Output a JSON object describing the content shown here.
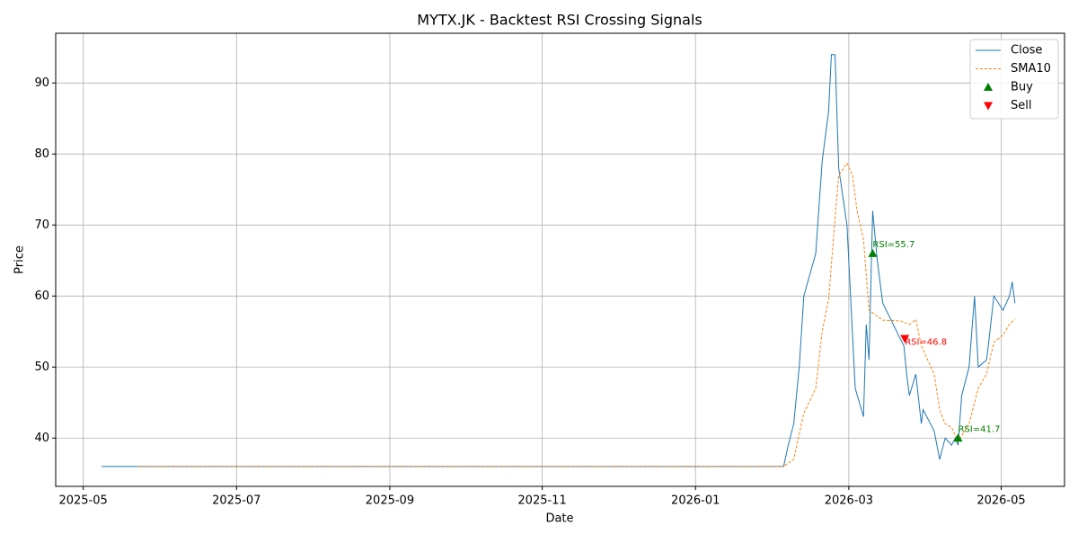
{
  "chart_data": {
    "type": "line",
    "title": "MYTX.JK - Backtest RSI Crossing Signals",
    "x_label": "Date",
    "y_label": "Price",
    "xlim": [
      2025.303,
      2026.402
    ],
    "ylim": [
      33.2,
      97.0
    ],
    "xticks": [
      {
        "value": 2025.333,
        "label": "2025-05"
      },
      {
        "value": 2025.5,
        "label": "2025-07"
      },
      {
        "value": 2025.667,
        "label": "2025-09"
      },
      {
        "value": 2025.833,
        "label": "2025-11"
      },
      {
        "value": 2026.0,
        "label": "2026-01"
      },
      {
        "value": 2026.167,
        "label": "2026-03"
      },
      {
        "value": 2026.333,
        "label": "2026-05"
      }
    ],
    "yticks": [
      40,
      50,
      60,
      70,
      80,
      90
    ],
    "grid": true,
    "legend": "upper right",
    "series": [
      {
        "name": "Close",
        "color": "#1f77b4",
        "style": "solid",
        "x": [
          2025.353,
          2026.096,
          2026.101,
          2026.107,
          2026.113,
          2026.118,
          2026.131,
          2026.138,
          2026.145,
          2026.148,
          2026.152,
          2026.156,
          2026.165,
          2026.174,
          2026.183,
          2026.186,
          2026.189,
          2026.193,
          2026.198,
          2026.204,
          2026.223,
          2026.227,
          2026.23,
          2026.233,
          2026.24,
          2026.246,
          2026.248,
          2026.26,
          2026.266,
          2026.272,
          2026.279,
          2026.283,
          2026.286,
          2026.29,
          2026.298,
          2026.304,
          2026.308,
          2026.317,
          2026.319,
          2026.325,
          2026.335,
          2026.342,
          2026.345,
          2026.348
        ],
        "values": [
          36,
          36,
          39,
          42,
          50,
          60,
          66,
          79,
          86,
          94,
          94,
          78,
          70,
          47,
          43,
          56,
          51,
          72,
          65,
          59,
          54,
          53,
          49,
          46,
          49,
          42,
          44,
          41,
          37,
          40,
          39,
          40,
          39,
          46,
          50,
          60,
          50,
          51,
          53,
          60,
          58,
          60,
          62,
          59
        ]
      },
      {
        "name": "SMA10",
        "color": "#ff7f0e",
        "style": "dashed",
        "x": [
          2025.393,
          2026.096,
          2026.107,
          2026.118,
          2026.131,
          2026.138,
          2026.145,
          2026.152,
          2026.156,
          2026.165,
          2026.171,
          2026.176,
          2026.183,
          2026.189,
          2026.204,
          2026.223,
          2026.233,
          2026.24,
          2026.246,
          2026.26,
          2026.266,
          2026.272,
          2026.279,
          2026.286,
          2026.298,
          2026.308,
          2026.317,
          2026.325,
          2026.335,
          2026.342,
          2026.348
        ],
        "values": [
          36,
          36,
          37,
          43.5,
          47,
          55,
          59.5,
          71,
          77,
          78.7,
          77,
          72,
          68,
          58,
          56.6,
          56.5,
          56,
          56.7,
          53,
          49,
          44,
          42,
          41.5,
          39.5,
          42,
          47,
          49,
          53.5,
          54.5,
          56,
          56.8
        ]
      },
      {
        "name": "Buy",
        "color": "#008000",
        "marker": "up",
        "x": [
          2026.193,
          2026.286
        ],
        "values": [
          66,
          40
        ],
        "labels": [
          "RSI=55.7",
          "RSI=41.7"
        ]
      },
      {
        "name": "Sell",
        "color": "#ff0000",
        "marker": "down",
        "x": [
          2026.228
        ],
        "values": [
          54
        ],
        "labels": [
          "RSI=46.8"
        ]
      }
    ]
  }
}
